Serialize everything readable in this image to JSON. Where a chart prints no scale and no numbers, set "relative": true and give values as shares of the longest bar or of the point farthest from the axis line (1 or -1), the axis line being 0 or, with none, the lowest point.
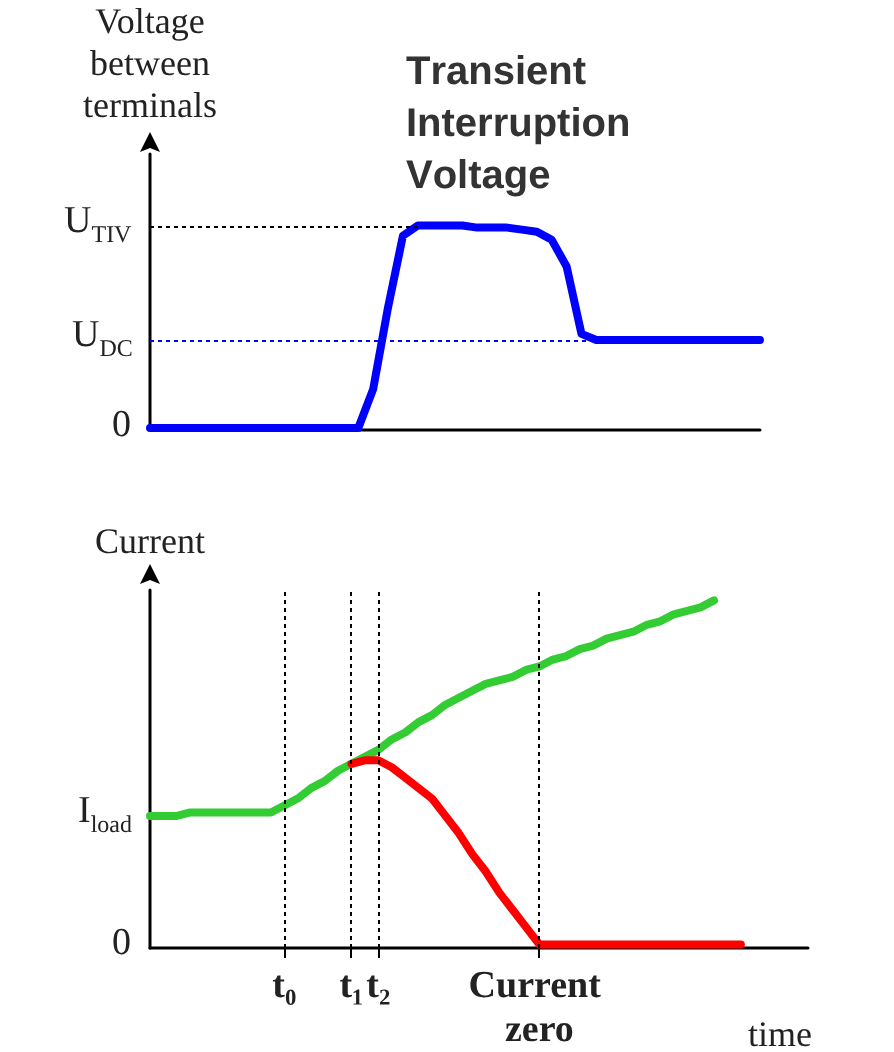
{
  "chart_data": [
    {
      "type": "line",
      "relative": true,
      "title": "Transient Interruption Voltage",
      "ylabel": "Voltage between terminals",
      "categories": [
        null,
        null,
        null,
        null,
        null,
        null,
        null,
        null,
        null,
        null,
        null,
        null,
        null,
        null,
        null,
        null,
        null,
        null,
        null,
        null,
        null,
        null,
        null,
        null,
        null,
        null,
        null,
        null,
        null,
        null,
        null,
        null,
        null,
        null,
        null,
        null,
        null,
        null,
        null,
        null,
        null,
        null
      ],
      "grid": false,
      "marker": "none",
      "line_style": "solid",
      "annotations": [
        "0",
        "U$_{DC}$",
        "U$_{TIV}$"
      ],
      "series": [
        {
          "color": "#0000ff",
          "values": [
            0.01,
            0.01,
            0.01,
            0.01,
            0.01,
            0.01,
            0.01,
            0.01,
            0.01,
            0.01,
            0.01,
            0.01,
            0.01,
            0.01,
            0.01,
            0.2,
            0.6,
            0.95,
            1,
            1,
            1,
            1,
            0.99,
            0.99,
            0.99,
            0.98,
            0.97,
            0.93,
            0.8,
            0.47,
            0.44,
            0.44,
            0.44,
            0.44,
            0.44,
            0.44,
            0.44,
            0.44,
            0.44,
            0.44,
            0.44,
            0.44
          ]
        }
      ],
      "ref_lines": [
        {
          "axis": "y",
          "value": 0.44,
          "color": "#0000ff",
          "line_style": "dotted"
        },
        {
          "axis": "y",
          "value": 1,
          "color": "#000000",
          "line_style": "dotted"
        }
      ]
    },
    {
      "type": "line",
      "relative": true,
      "ylabel": "Current",
      "xlabel": "time",
      "categories": [
        null,
        null,
        null,
        null,
        null,
        null,
        null,
        null,
        null,
        null,
        "t₀",
        null,
        null,
        null,
        null,
        "t₁",
        null,
        "t₂",
        null,
        null,
        null,
        null,
        null,
        null,
        null,
        null,
        null,
        null,
        null,
        "Current zero",
        null,
        null,
        null,
        null,
        null,
        null,
        null,
        null,
        null,
        null,
        null,
        null,
        null,
        null,
        null,
        null,
        null,
        null,
        null,
        null
      ],
      "grid": false,
      "marker": "none",
      "line_style": "solid",
      "annotations": [
        "0",
        "I$_{load}$"
      ],
      "series": [
        {
          "color": "#33cc33",
          "values": [
            0.38,
            0.38,
            0.38,
            0.39,
            0.39,
            0.39,
            0.39,
            0.39,
            0.39,
            0.39,
            0.41,
            0.43,
            0.46,
            0.48,
            0.51,
            0.53,
            0.55,
            0.57,
            0.6,
            0.62,
            0.65,
            0.67,
            0.7,
            0.72,
            0.74,
            0.76,
            0.77,
            0.78,
            0.8,
            0.81,
            0.83,
            0.84,
            0.86,
            0.87,
            0.89,
            0.9,
            0.91,
            0.93,
            0.94,
            0.96,
            0.97,
            0.98,
            1,
            null,
            null,
            null,
            null,
            null,
            null,
            null
          ]
        },
        {
          "color": "#ff0000",
          "values": [
            null,
            null,
            null,
            null,
            null,
            null,
            null,
            null,
            null,
            null,
            null,
            null,
            null,
            null,
            null,
            0.53,
            0.54,
            0.54,
            0.52,
            0.49,
            0.46,
            0.43,
            0.38,
            0.33,
            0.27,
            0.22,
            0.16,
            0.11,
            0.06,
            0.01,
            0.01,
            0.01,
            0.01,
            0.01,
            0.01,
            0.01,
            0.01,
            0.01,
            0.01,
            0.01,
            0.01,
            0.01,
            0.01,
            0.01,
            0.01,
            null,
            null,
            null,
            null,
            null
          ]
        }
      ],
      "ref_lines": [
        {
          "axis": "x",
          "value": "t₀",
          "color": "#000000",
          "line_style": "dotted"
        },
        {
          "axis": "x",
          "value": "t₁",
          "color": "#000000",
          "line_style": "dotted"
        },
        {
          "axis": "x",
          "value": "t₂",
          "color": "#000000",
          "line_style": "dotted"
        },
        {
          "axis": "x",
          "value": "Current zero",
          "color": "#000000",
          "line_style": "dotted"
        }
      ]
    }
  ]
}
